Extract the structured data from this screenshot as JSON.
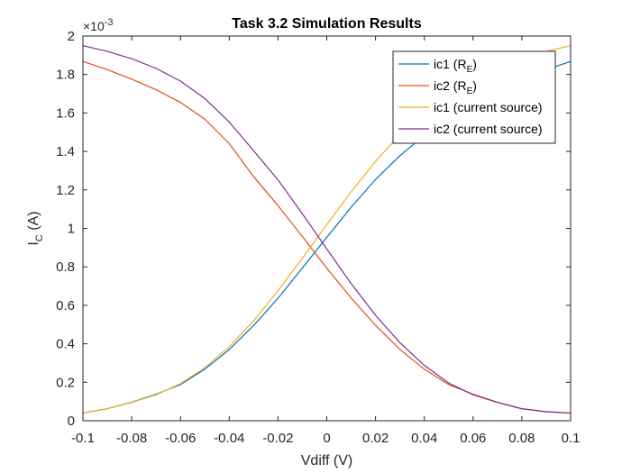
{
  "chart_data": {
    "type": "line",
    "title": "Task 3.2 Simulation Results",
    "xlabel": "Vdiff (V)",
    "ylabel": {
      "main": "I",
      "sub": "C",
      "unit": " (A)"
    },
    "y_exponent": {
      "prefix": "×10",
      "power": "-3"
    },
    "xlim": [
      -0.1,
      0.1
    ],
    "ylim": [
      0,
      0.002
    ],
    "x_ticks": [
      -0.1,
      -0.08,
      -0.06,
      -0.04,
      -0.02,
      0,
      0.02,
      0.04,
      0.06,
      0.08,
      0.1
    ],
    "x_tick_labels": [
      "-0.1",
      "-0.08",
      "-0.06",
      "-0.04",
      "-0.02",
      "0",
      "0.02",
      "0.04",
      "0.06",
      "0.08",
      "0.1"
    ],
    "y_ticks": [
      0,
      0.0002,
      0.0004,
      0.0006,
      0.0008,
      0.001,
      0.0012,
      0.0014,
      0.0016,
      0.0018,
      0.002
    ],
    "y_tick_labels": [
      "0",
      "0.2",
      "0.4",
      "0.6",
      "0.8",
      "1",
      "1.2",
      "1.4",
      "1.6",
      "1.8",
      "2"
    ],
    "grid": false,
    "legend_position": "top-right",
    "x": [
      -0.1,
      -0.09,
      -0.08,
      -0.07,
      -0.06,
      -0.05,
      -0.04,
      -0.03,
      -0.02,
      -0.01,
      0,
      0.01,
      0.02,
      0.03,
      0.04,
      0.05,
      0.06,
      0.07,
      0.08,
      0.09,
      0.1
    ],
    "series": [
      {
        "label": "ic1 (R",
        "label_sub": "E",
        "label_tail": ")",
        "color": "#0072BD",
        "values": [
          4e-05,
          6.3e-05,
          9.6e-05,
          0.000138,
          0.000188,
          0.000268,
          0.00037,
          0.000495,
          0.000637,
          0.000794,
          0.000953,
          0.00111,
          0.001254,
          0.001378,
          0.001484,
          0.001577,
          0.001655,
          0.001721,
          0.001776,
          0.001825,
          0.001868
        ]
      },
      {
        "label": "ic2 (R",
        "label_sub": "E",
        "label_tail": ")",
        "color": "#D95319",
        "values": [
          0.001868,
          0.001825,
          0.001776,
          0.001721,
          0.001655,
          0.001568,
          0.001441,
          0.001269,
          0.001118,
          0.000958,
          0.000793,
          0.000638,
          0.000496,
          0.000371,
          0.000268,
          0.000188,
          0.000138,
          9.6e-05,
          6.3e-05,
          4.7e-05,
          4e-05
        ]
      },
      {
        "label": "ic1 (current source)",
        "label_sub": "",
        "label_tail": "",
        "color": "#EDB120",
        "values": [
          4e-05,
          6.2e-05,
          9.5e-05,
          0.000135,
          0.000193,
          0.000276,
          0.000385,
          0.000519,
          0.000676,
          0.000845,
          0.00102,
          0.00119,
          0.001348,
          0.001489,
          0.001598,
          0.001694,
          0.00177,
          0.001832,
          0.001882,
          0.00192,
          0.00195
        ]
      },
      {
        "label": "ic2 (current source)",
        "label_sub": "",
        "label_tail": "",
        "color": "#7E2F8E",
        "values": [
          0.00195,
          0.00192,
          0.001882,
          0.001832,
          0.001766,
          0.001675,
          0.001553,
          0.001404,
          0.001252,
          0.001076,
          0.000893,
          0.000713,
          0.000548,
          0.000406,
          0.000288,
          0.000196,
          0.000135,
          9.5e-05,
          6.2e-05,
          4.7e-05,
          4e-05
        ]
      }
    ]
  }
}
